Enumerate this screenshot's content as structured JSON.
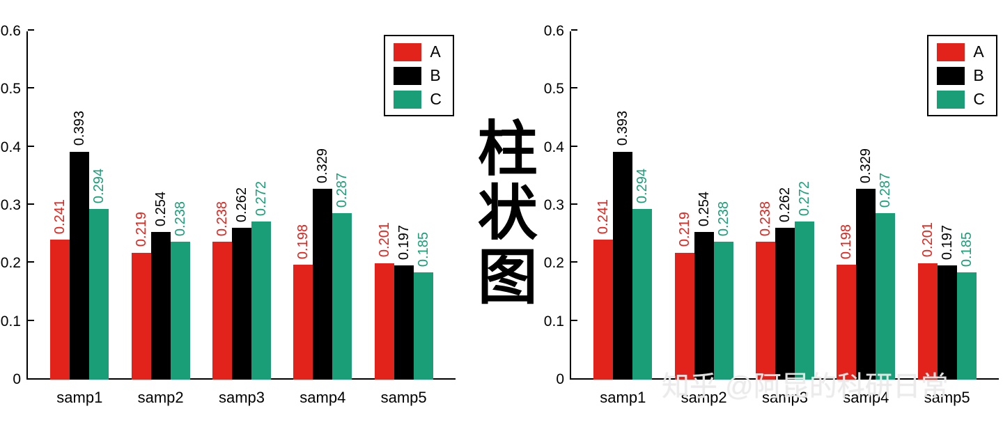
{
  "center_title": "柱状图",
  "watermark": "知乎 @阿昆的科研日常",
  "colors": {
    "series_a": "#e2231c",
    "series_b": "#000000",
    "series_c": "#1a9e78",
    "axis": "#000000",
    "background": "#ffffff"
  },
  "chart_data": [
    {
      "type": "bar",
      "title": "",
      "xlabel": "",
      "ylabel": "",
      "categories": [
        "samp1",
        "samp2",
        "samp3",
        "samp4",
        "samp5"
      ],
      "series": [
        {
          "name": "A",
          "color": "#e2231c",
          "values": [
            0.241,
            0.219,
            0.238,
            0.198,
            0.201
          ]
        },
        {
          "name": "B",
          "color": "#000000",
          "values": [
            0.393,
            0.254,
            0.262,
            0.329,
            0.197
          ]
        },
        {
          "name": "C",
          "color": "#1a9e78",
          "values": [
            0.294,
            0.238,
            0.272,
            0.287,
            0.185
          ]
        }
      ],
      "ylim": [
        0,
        0.6
      ],
      "yticks": [
        0,
        0.1,
        0.2,
        0.3,
        0.4,
        0.5,
        0.6
      ],
      "grid": false,
      "legend_position": "top-right",
      "value_labels": "rotated-90-above-bars"
    },
    {
      "type": "bar",
      "title": "",
      "xlabel": "",
      "ylabel": "",
      "categories": [
        "samp1",
        "samp2",
        "samp3",
        "samp4",
        "samp5"
      ],
      "series": [
        {
          "name": "A",
          "color": "#e2231c",
          "values": [
            0.241,
            0.219,
            0.238,
            0.198,
            0.201
          ]
        },
        {
          "name": "B",
          "color": "#000000",
          "values": [
            0.393,
            0.254,
            0.262,
            0.329,
            0.197
          ]
        },
        {
          "name": "C",
          "color": "#1a9e78",
          "values": [
            0.294,
            0.238,
            0.272,
            0.287,
            0.185
          ]
        }
      ],
      "ylim": [
        0,
        0.6
      ],
      "yticks": [
        0,
        0.1,
        0.2,
        0.3,
        0.4,
        0.5,
        0.6
      ],
      "grid": false,
      "legend_position": "top-right",
      "value_labels": "rotated-90-above-bars"
    }
  ]
}
